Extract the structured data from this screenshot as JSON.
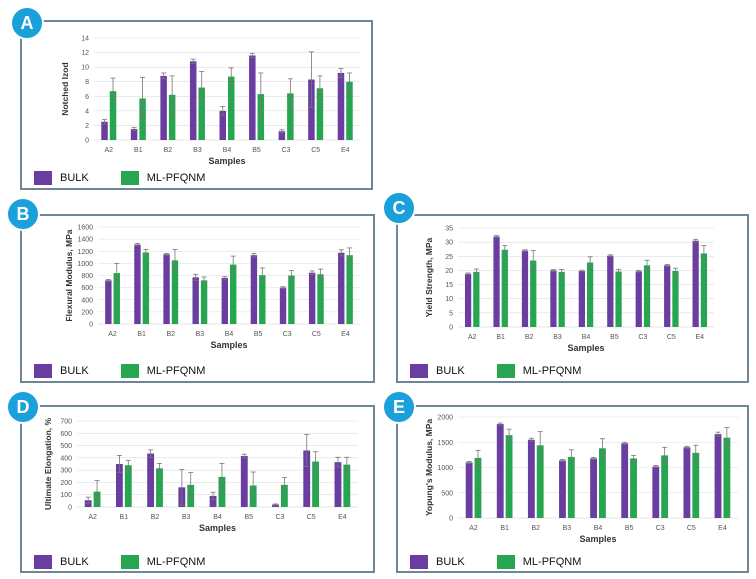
{
  "colors": {
    "bulk": "#6a3ea1",
    "ml": "#27a551",
    "grid": "#dddddd",
    "axis": "#cccccc",
    "text": "#333333"
  },
  "legend": {
    "bulk": "BULK",
    "ml": "ML-PFQNM"
  },
  "chart_data": [
    {
      "id": "A",
      "type": "bar",
      "categories": [
        "A2",
        "B1",
        "B2",
        "B3",
        "B4",
        "B5",
        "C3",
        "C5",
        "E4"
      ],
      "series": [
        {
          "name": "BULK",
          "values": [
            2.5,
            1.5,
            8.8,
            10.8,
            4,
            11.6,
            1.2,
            8.3,
            9.2
          ],
          "errors": [
            0.3,
            0.2,
            0.4,
            0.3,
            0.6,
            0.3,
            0.2,
            3.8,
            0.6
          ]
        },
        {
          "name": "ML-PFQNM",
          "values": [
            6.7,
            5.7,
            6.2,
            7.2,
            8.7,
            6.3,
            6.4,
            7.1,
            8
          ],
          "errors": [
            1.8,
            2.9,
            2.6,
            2.2,
            1.2,
            2.9,
            2,
            1.7,
            1.2
          ]
        }
      ],
      "ylim": [
        0,
        14
      ],
      "yticks": [
        0,
        2,
        4,
        6,
        8,
        10,
        12,
        14
      ],
      "ylabel": "Notched Izod",
      "xlabel": "Samples"
    },
    {
      "id": "B",
      "type": "bar",
      "categories": [
        "A2",
        "B1",
        "B2",
        "B3",
        "B4",
        "B5",
        "C3",
        "C5",
        "E4"
      ],
      "series": [
        {
          "name": "BULK",
          "values": [
            720,
            1310,
            1150,
            770,
            760,
            1135,
            600,
            845,
            1175
          ],
          "errors": [
            15,
            20,
            15,
            50,
            20,
            30,
            15,
            30,
            50
          ]
        },
        {
          "name": "ML-PFQNM",
          "values": [
            840,
            1180,
            1050,
            720,
            980,
            805,
            800,
            820,
            1135
          ],
          "errors": [
            160,
            50,
            180,
            55,
            140,
            120,
            80,
            85,
            120
          ]
        }
      ],
      "ylim": [
        0,
        1600
      ],
      "yticks": [
        0,
        200,
        400,
        600,
        800,
        1000,
        1200,
        1400,
        1600
      ],
      "ylabel": "Flexural Modulus, MPa",
      "xlabel": "Samples"
    },
    {
      "id": "C",
      "type": "bar",
      "categories": [
        "A2",
        "B1",
        "B2",
        "B3",
        "B4",
        "B5",
        "C3",
        "C5",
        "E4"
      ],
      "series": [
        {
          "name": "BULK",
          "values": [
            18.8,
            32,
            27,
            20,
            19.8,
            25.2,
            19.7,
            21.8,
            30.5
          ],
          "errors": [
            0.3,
            0.3,
            0.3,
            0.3,
            0.3,
            0.3,
            0.3,
            0.3,
            0.5
          ]
        },
        {
          "name": "ML-PFQNM",
          "values": [
            19.5,
            27.3,
            23.5,
            19.5,
            22.8,
            19.6,
            21.8,
            19.8,
            26
          ],
          "errors": [
            1,
            1.5,
            3.5,
            0.8,
            2,
            0.8,
            1.8,
            1,
            2.8
          ]
        }
      ],
      "ylim": [
        0,
        35
      ],
      "yticks": [
        0,
        5,
        10,
        15,
        20,
        25,
        30,
        35
      ],
      "ylabel": "Yield Strength, MPa",
      "xlabel": "Samples"
    },
    {
      "id": "D",
      "type": "bar",
      "categories": [
        "A2",
        "B1",
        "B2",
        "B3",
        "B4",
        "B5",
        "C3",
        "C5",
        "E4"
      ],
      "series": [
        {
          "name": "BULK",
          "values": [
            55,
            350,
            435,
            160,
            90,
            415,
            20,
            460,
            365
          ],
          "errors": [
            25,
            70,
            30,
            145,
            30,
            15,
            5,
            130,
            40
          ]
        },
        {
          "name": "ML-PFQNM",
          "values": [
            125,
            340,
            315,
            180,
            245,
            175,
            180,
            370,
            345
          ],
          "errors": [
            90,
            40,
            40,
            100,
            110,
            110,
            60,
            80,
            60
          ]
        }
      ],
      "ylim": [
        0,
        700
      ],
      "yticks": [
        0,
        100,
        200,
        300,
        400,
        500,
        600,
        700
      ],
      "ylabel": "Ultimate Elongation, %",
      "xlabel": "Samples"
    },
    {
      "id": "E",
      "type": "bar",
      "categories": [
        "A2",
        "B1",
        "B2",
        "B3",
        "B4",
        "B5",
        "C3",
        "C5",
        "E4"
      ],
      "series": [
        {
          "name": "BULK",
          "values": [
            1100,
            1860,
            1550,
            1140,
            1180,
            1480,
            1020,
            1400,
            1660
          ],
          "errors": [
            20,
            20,
            30,
            20,
            20,
            20,
            20,
            20,
            40
          ]
        },
        {
          "name": "ML-PFQNM",
          "values": [
            1190,
            1640,
            1440,
            1210,
            1380,
            1180,
            1240,
            1290,
            1590
          ],
          "errors": [
            150,
            120,
            270,
            140,
            190,
            60,
            160,
            150,
            200
          ]
        }
      ],
      "ylim": [
        0,
        2000
      ],
      "yticks": [
        0,
        500,
        1000,
        1500,
        2000
      ],
      "ylabel": "Yopung's Modulus, MPa",
      "xlabel": "Samples"
    }
  ]
}
